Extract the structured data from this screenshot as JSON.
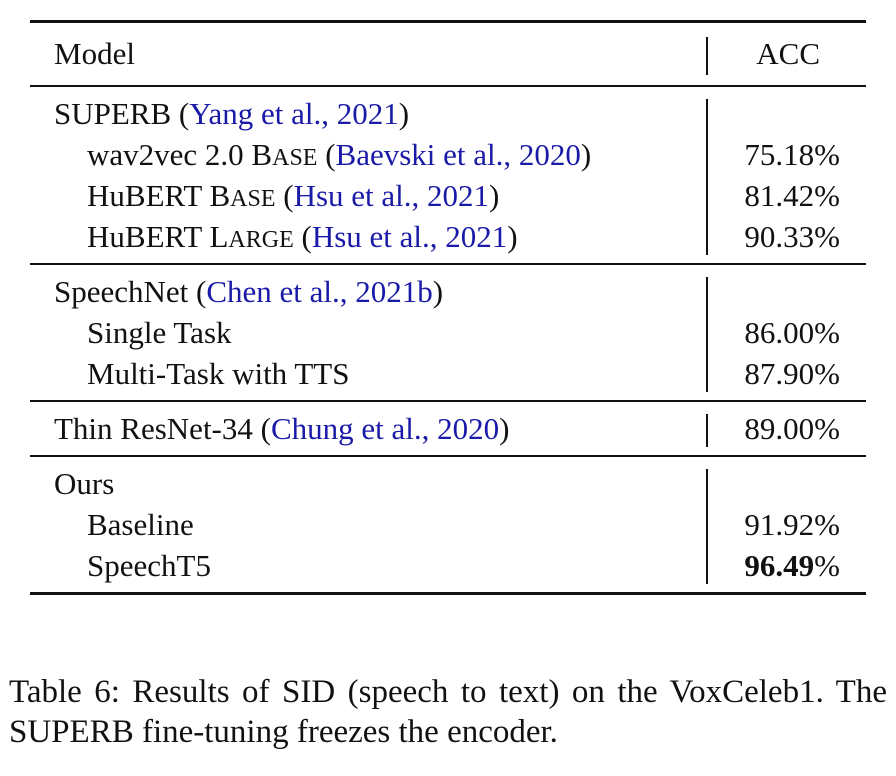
{
  "header": {
    "model": "Model",
    "acc": "ACC"
  },
  "groups": [
    {
      "title": "SUPERB",
      "title_cite": "Yang et al., 2021",
      "rows": [
        {
          "name": "wav2vec 2.0",
          "sc_first": "B",
          "sc_rest": "ASE",
          "cite": "Baevski et al., 2020",
          "acc": "75.18%"
        },
        {
          "name": "HuBERT",
          "sc_first": "B",
          "sc_rest": "ASE",
          "cite": "Hsu et al., 2021",
          "acc": "81.42%"
        },
        {
          "name": "HuBERT",
          "sc_first": "L",
          "sc_rest": "ARGE",
          "cite": "Hsu et al., 2021",
          "acc": "90.33%"
        }
      ]
    },
    {
      "title": "SpeechNet",
      "title_cite": "Chen et al., 2021b",
      "rows": [
        {
          "name": "Single Task",
          "acc": "86.00%"
        },
        {
          "name": "Multi-Task with TTS",
          "acc": "87.90%"
        }
      ]
    },
    {
      "title": "Thin ResNet-34",
      "title_cite": "Chung et al., 2020",
      "title_acc": "89.00%"
    },
    {
      "title": "Ours",
      "rows": [
        {
          "name": "Baseline",
          "acc": "91.92%"
        },
        {
          "name": "SpeechT5",
          "acc_num": "96.49",
          "acc_pct": "%"
        }
      ]
    }
  ],
  "caption": "Table 6:  Results of SID (speech to text) on the VoxCeleb1. The SUPERB fine-tuning freezes the encoder.",
  "colors": {
    "citation": "#1a1aa8",
    "text": "#111111"
  }
}
